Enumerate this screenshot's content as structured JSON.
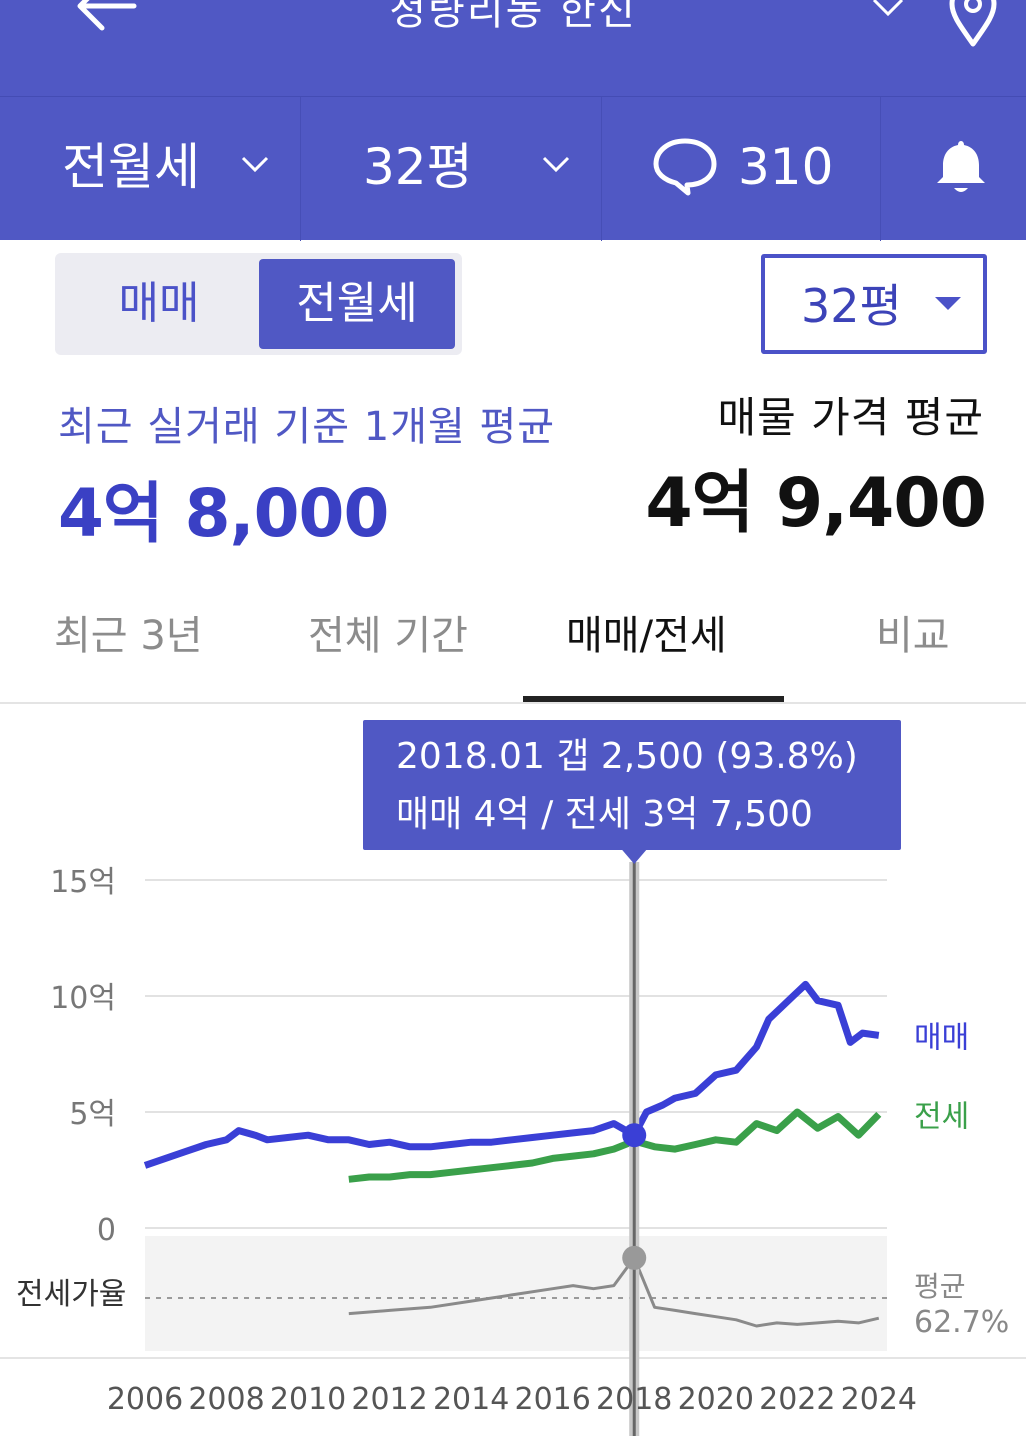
{
  "topbar": {
    "title": "청량리동 한신",
    "back_icon": "arrow-left-icon",
    "location_icon": "map-pin-icon",
    "dropdown_icon": "chevron-down-icon"
  },
  "filters": {
    "deal_type": "전월세",
    "size": "32평",
    "comments_count": "310",
    "comment_icon": "speech-bubble-icon",
    "bell_icon": "bell-icon"
  },
  "segment": {
    "options": [
      "매매",
      "전월세"
    ],
    "selected": "전월세"
  },
  "size_select": {
    "value": "32평"
  },
  "summary": {
    "recent_label": "최근 실거래 기준 1개월 평균",
    "recent_value": "4억 8,000",
    "listing_label": "매물 가격 평균",
    "listing_value": "4억 9,400"
  },
  "tabs": {
    "items": [
      "최근 3년",
      "전체 기간",
      "매매/전세",
      "비교"
    ],
    "active": "매매/전세"
  },
  "tooltip": {
    "line1": "2018.01  갭 2,500 (93.8%)",
    "line2": "매매 4억 / 전세 3억 7,500"
  },
  "chart_data": {
    "type": "line",
    "y_ticks": [
      "15억",
      "10억",
      "5억",
      "0"
    ],
    "y_range": [
      0,
      15
    ],
    "x_ticks": [
      "2006",
      "2008",
      "2010",
      "2012",
      "2014",
      "2016",
      "2018",
      "2020",
      "2022",
      "2024"
    ],
    "x_range": [
      2006,
      2024.2
    ],
    "series": [
      {
        "name": "매매",
        "color": "#3a3fd6",
        "x": [
          2006.0,
          2006.5,
          2007.0,
          2007.5,
          2008.0,
          2008.3,
          2008.7,
          2009.0,
          2009.5,
          2010.0,
          2010.5,
          2011.0,
          2011.5,
          2012.0,
          2012.5,
          2013.0,
          2013.5,
          2014.0,
          2014.5,
          2015.0,
          2015.5,
          2016.0,
          2016.5,
          2017.0,
          2017.5,
          2018.0,
          2018.3,
          2018.7,
          2019.0,
          2019.5,
          2020.0,
          2020.5,
          2021.0,
          2021.3,
          2021.6,
          2021.9,
          2022.2,
          2022.5,
          2023.0,
          2023.3,
          2023.6,
          2024.0
        ],
        "values": [
          2.7,
          3.0,
          3.3,
          3.6,
          3.8,
          4.2,
          4.0,
          3.8,
          3.9,
          4.0,
          3.8,
          3.8,
          3.6,
          3.7,
          3.5,
          3.5,
          3.6,
          3.7,
          3.7,
          3.8,
          3.9,
          4.0,
          4.1,
          4.2,
          4.5,
          4.0,
          5.0,
          5.3,
          5.6,
          5.8,
          6.6,
          6.8,
          7.8,
          9.0,
          9.5,
          10.0,
          10.5,
          9.8,
          9.6,
          8.0,
          8.4,
          8.3
        ]
      },
      {
        "name": "전세",
        "color": "#3aa04a",
        "x": [
          2011.0,
          2011.5,
          2012.0,
          2012.5,
          2013.0,
          2013.5,
          2014.0,
          2014.5,
          2015.0,
          2015.5,
          2016.0,
          2016.5,
          2017.0,
          2017.5,
          2018.0,
          2018.5,
          2019.0,
          2019.5,
          2020.0,
          2020.5,
          2021.0,
          2021.5,
          2022.0,
          2022.5,
          2023.0,
          2023.5,
          2024.0
        ],
        "values": [
          2.1,
          2.2,
          2.2,
          2.3,
          2.3,
          2.4,
          2.5,
          2.6,
          2.7,
          2.8,
          3.0,
          3.1,
          3.2,
          3.4,
          3.75,
          3.5,
          3.4,
          3.6,
          3.8,
          3.7,
          4.5,
          4.2,
          5.0,
          4.3,
          4.8,
          4.0,
          4.9
        ]
      }
    ],
    "ratio": {
      "label": "전세가율",
      "average_label": "평균",
      "average_value": "62.7%",
      "x": [
        2011.0,
        2012.0,
        2013.0,
        2014.0,
        2015.0,
        2016.0,
        2016.5,
        2017.0,
        2017.5,
        2018.0,
        2018.5,
        2019.0,
        2019.5,
        2020.0,
        2020.5,
        2021.0,
        2021.5,
        2022.0,
        2022.5,
        2023.0,
        2023.5,
        2024.0
      ],
      "values": [
        58,
        60,
        62,
        66,
        70,
        74,
        76,
        74,
        76,
        93.8,
        62,
        60,
        58,
        56,
        54,
        50,
        52,
        51,
        52,
        53,
        52,
        55
      ]
    },
    "highlight": {
      "x": 2018.0,
      "sale": 4.0,
      "jeonse": 3.75,
      "ratio": 93.8
    }
  }
}
